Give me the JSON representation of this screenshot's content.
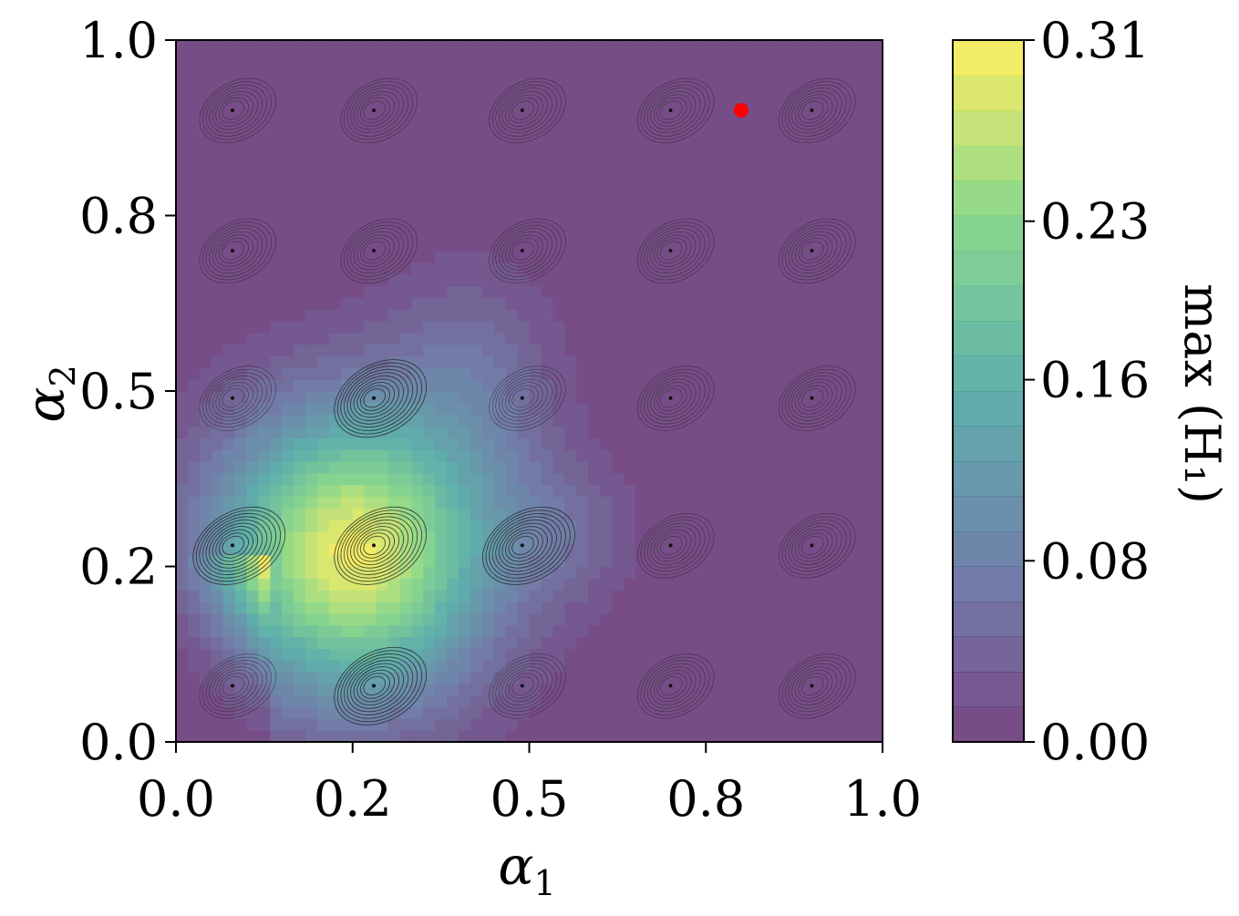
{
  "chart_data": {
    "type": "heatmap",
    "title": "",
    "xlabel": "α",
    "xlabel_sub": "1",
    "ylabel": "α",
    "ylabel_sub": "2",
    "xlim": [
      0.0,
      1.0
    ],
    "ylim": [
      0.0,
      1.0
    ],
    "xticks": [
      0.0,
      0.25,
      0.5,
      0.75,
      1.0
    ],
    "xtick_labels": [
      "0.0",
      "0.2",
      "0.5",
      "0.8",
      "1.0"
    ],
    "yticks": [
      0.0,
      0.25,
      0.5,
      0.75,
      1.0
    ],
    "ytick_labels": [
      "0.0",
      "0.2",
      "0.5",
      "0.8",
      "1.0"
    ],
    "colorbar": {
      "label": "max (H₁)",
      "range": [
        0.0,
        0.31
      ],
      "ticks": [
        0.0,
        0.08,
        0.16,
        0.23,
        0.31
      ],
      "tick_labels": [
        "0.00",
        "0.08",
        "0.16",
        "0.23",
        "0.31"
      ],
      "levels": 20,
      "colormap": "viridis"
    },
    "field_peaks": [
      {
        "x": 0.25,
        "y": 0.27,
        "value": 0.31
      },
      {
        "x": 0.12,
        "y": 0.19,
        "value": 0.22
      }
    ],
    "orbit_grid_centers": [
      0.08,
      0.28,
      0.49,
      0.7,
      0.9
    ],
    "highlight_point": {
      "x": 0.8,
      "y": 0.9,
      "color": "#ff0000"
    }
  }
}
